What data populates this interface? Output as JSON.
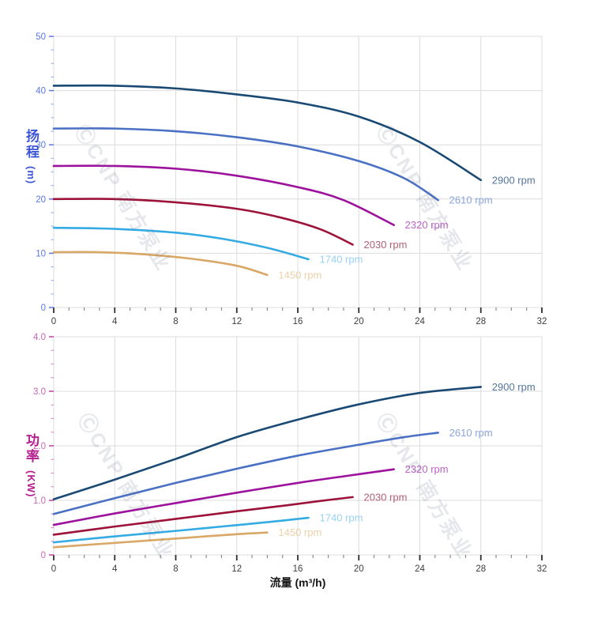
{
  "watermark": {
    "text": "ⒸCNP 南方泵业"
  },
  "x_axis_title": "流量 (m³/h)",
  "axes_style": {
    "grid_color": "#dcdcdc",
    "x_major_tick_color": "#2e2e2e",
    "x_minor_tick_color": "#8c8c8c",
    "x_tick_label_color": "#3d3d3d"
  },
  "chart_data": [
    {
      "type": "line",
      "title": "",
      "ylabel": "扬程",
      "ylabel_unit": "(m)",
      "xlabel": "流量 (m³/h)",
      "xlim": [
        0,
        32
      ],
      "ylim": [
        0,
        50
      ],
      "xticks": [
        0,
        4,
        8,
        12,
        16,
        20,
        24,
        28,
        32
      ],
      "xtick_labels": [
        "0",
        "4",
        "8",
        "12",
        "16",
        "20",
        "24",
        "28",
        "32"
      ],
      "yticks": [
        0,
        10,
        20,
        30,
        40,
        50
      ],
      "ytick_labels": [
        "0",
        "10",
        "20",
        "30",
        "40",
        "50"
      ],
      "minor_x_step": 1,
      "minor_y_step": 2.5,
      "grid": true,
      "legend": "labels at end of each line",
      "axis_title_color": "#3b55d6",
      "tick_color": "#5a78e0",
      "tick_label_color": "#5a78e0",
      "series": [
        {
          "name": "2900 rpm",
          "color": "#1a4a73",
          "label_color": "#54759d",
          "x": [
            0,
            4,
            8,
            12,
            16,
            20,
            24,
            28
          ],
          "y": [
            40.9,
            40.9,
            40.4,
            39.3,
            37.8,
            35.2,
            30.5,
            23.5
          ]
        },
        {
          "name": "2610 rpm",
          "color": "#4a70c4",
          "label_color": "#8aa4dc",
          "x": [
            0,
            4,
            8,
            12,
            16,
            20,
            23,
            25.2
          ],
          "y": [
            33.0,
            33.0,
            32.5,
            31.4,
            29.7,
            27.0,
            23.8,
            19.8
          ]
        },
        {
          "name": "2320 rpm",
          "color": "#9c129c",
          "label_color": "#bb64c4",
          "x": [
            0,
            4,
            8,
            12,
            16,
            19,
            22.3
          ],
          "y": [
            26.1,
            26.1,
            25.6,
            24.3,
            22.2,
            19.8,
            15.2
          ]
        },
        {
          "name": "2030 rpm",
          "color": "#9c1238",
          "label_color": "#b25f74",
          "x": [
            0,
            4,
            8,
            12,
            15,
            17.5,
            19.6
          ],
          "y": [
            20.0,
            20.0,
            19.4,
            18.2,
            16.5,
            14.4,
            11.6
          ]
        },
        {
          "name": "1740 rpm",
          "color": "#35abe3",
          "label_color": "#97d0f2",
          "x": [
            0,
            4,
            8,
            11,
            14,
            16.7
          ],
          "y": [
            14.7,
            14.5,
            13.8,
            12.7,
            11.0,
            8.9
          ]
        },
        {
          "name": "1450 rpm",
          "color": "#d9a766",
          "label_color": "#ead0a8",
          "x": [
            0,
            3,
            6,
            9,
            12,
            14
          ],
          "y": [
            10.2,
            10.2,
            9.8,
            9.0,
            7.7,
            6.0
          ]
        }
      ]
    },
    {
      "type": "line",
      "title": "",
      "ylabel": "功率",
      "ylabel_unit": "(KW)",
      "xlabel": "流量 (m³/h)",
      "xlim": [
        0,
        32
      ],
      "ylim": [
        0,
        4.0
      ],
      "xticks": [
        0,
        4,
        8,
        12,
        16,
        20,
        24,
        28,
        32
      ],
      "xtick_labels": [
        "0",
        "4",
        "8",
        "12",
        "16",
        "20",
        "24",
        "28",
        "32"
      ],
      "yticks": [
        0,
        1.0,
        2.0,
        3.0,
        4.0
      ],
      "ytick_labels": [
        "0",
        "1.0",
        "2.0",
        "3.0",
        "4.0"
      ],
      "minor_x_step": 1,
      "minor_y_step": 0.25,
      "grid": true,
      "legend": "labels at end of each line",
      "axis_title_color": "#b61e8e",
      "tick_color": "#c23fa3",
      "tick_label_color": "#c668b2",
      "series": [
        {
          "name": "2900 rpm",
          "color": "#1a4a73",
          "label_color": "#54759d",
          "x": [
            0,
            4,
            8,
            12,
            16,
            20,
            24,
            28
          ],
          "y": [
            1.02,
            1.38,
            1.76,
            2.16,
            2.48,
            2.76,
            2.97,
            3.08
          ]
        },
        {
          "name": "2610 rpm",
          "color": "#4a70c4",
          "label_color": "#8aa4dc",
          "x": [
            0,
            4,
            8,
            12,
            16,
            20,
            23,
            25.2
          ],
          "y": [
            0.75,
            1.04,
            1.32,
            1.58,
            1.82,
            2.02,
            2.16,
            2.24
          ]
        },
        {
          "name": "2320 rpm",
          "color": "#9c129c",
          "label_color": "#bb64c4",
          "x": [
            0,
            4,
            8,
            12,
            16,
            19,
            22.3
          ],
          "y": [
            0.55,
            0.76,
            0.95,
            1.14,
            1.32,
            1.44,
            1.57
          ]
        },
        {
          "name": "2030 rpm",
          "color": "#9c1238",
          "label_color": "#b25f74",
          "x": [
            0,
            4,
            8,
            12,
            15,
            17.5,
            19.6
          ],
          "y": [
            0.37,
            0.52,
            0.66,
            0.8,
            0.9,
            0.99,
            1.06
          ]
        },
        {
          "name": "1740 rpm",
          "color": "#35abe3",
          "label_color": "#97d0f2",
          "x": [
            0,
            4,
            8,
            11,
            14,
            16.7
          ],
          "y": [
            0.23,
            0.34,
            0.44,
            0.52,
            0.6,
            0.68
          ]
        },
        {
          "name": "1450 rpm",
          "color": "#d9a766",
          "label_color": "#ead0a8",
          "x": [
            0,
            3,
            6,
            9,
            12,
            14
          ],
          "y": [
            0.14,
            0.2,
            0.26,
            0.32,
            0.38,
            0.41
          ]
        }
      ]
    }
  ]
}
